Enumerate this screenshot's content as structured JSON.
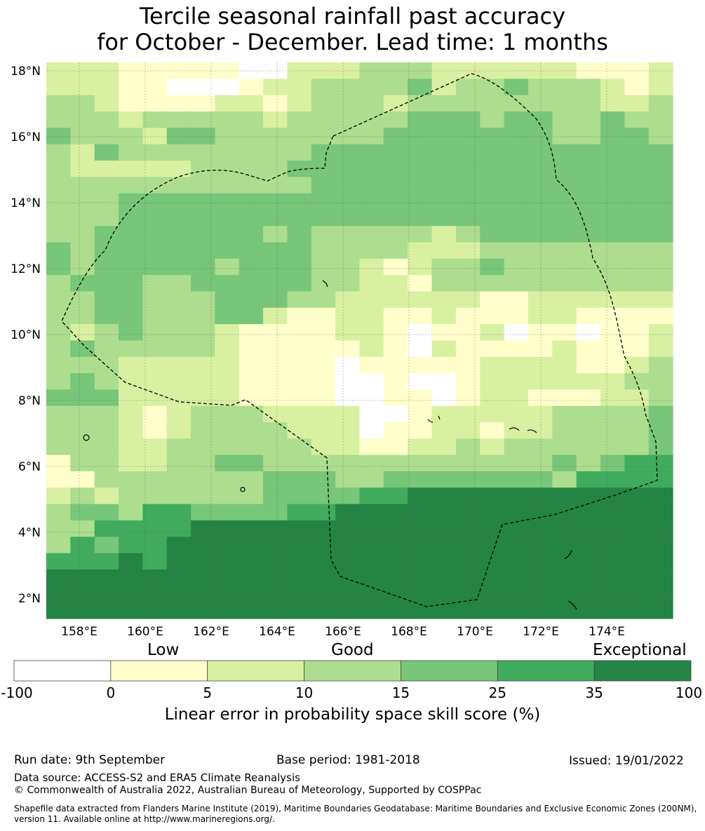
{
  "title": {
    "line1": "Tercile seasonal rainfall past accuracy",
    "line2": "for October - December. Lead time: 1 months"
  },
  "map": {
    "lat_labels": [
      "18°N",
      "16°N",
      "14°N",
      "12°N",
      "10°N",
      "8°N",
      "6°N",
      "4°N",
      "2°N"
    ],
    "lon_labels": [
      "158°E",
      "160°E",
      "162°E",
      "164°E",
      "166°E",
      "168°E",
      "170°E",
      "172°E",
      "174°E"
    ]
  },
  "colorbar": {
    "category_labels": {
      "low": "Low",
      "good": "Good",
      "exceptional": "Exceptional"
    },
    "ticks": [
      "-100",
      "0",
      "5",
      "10",
      "15",
      "25",
      "35",
      "100"
    ],
    "bins": [
      {
        "range": "-100 to 0",
        "color": "#ffffff"
      },
      {
        "range": "0 to 5",
        "color": "#ffffcc"
      },
      {
        "range": "5 to 10",
        "color": "#d9f0a3"
      },
      {
        "range": "10 to 15",
        "color": "#addd8e"
      },
      {
        "range": "15 to 25",
        "color": "#78c679"
      },
      {
        "range": "25 to 35",
        "color": "#41ab5d"
      },
      {
        "range": "35 to 100",
        "color": "#238443"
      }
    ],
    "label": "Linear error in probability space skill score (%)"
  },
  "footer": {
    "run_date": "Run date: 9th September",
    "base_period": "Base period: 1981-2018",
    "issued": "Issued: 19/01/2022",
    "data_source": "Data source: ACCESS-S2 and ERA5 Climate Reanalysis",
    "copyright": "© Commonwealth of Australia 2022, Australian Bureau of Meteorology, Supported by COSPPac",
    "shapefile": "Shapefile data extracted from Flanders Marine Institute (2019), Maritime Boundaries Geodatabase: Maritime Boundaries and Exclusive Economic Zones (200NM), version 11. Available online at http://www.marineregions.org/."
  }
}
